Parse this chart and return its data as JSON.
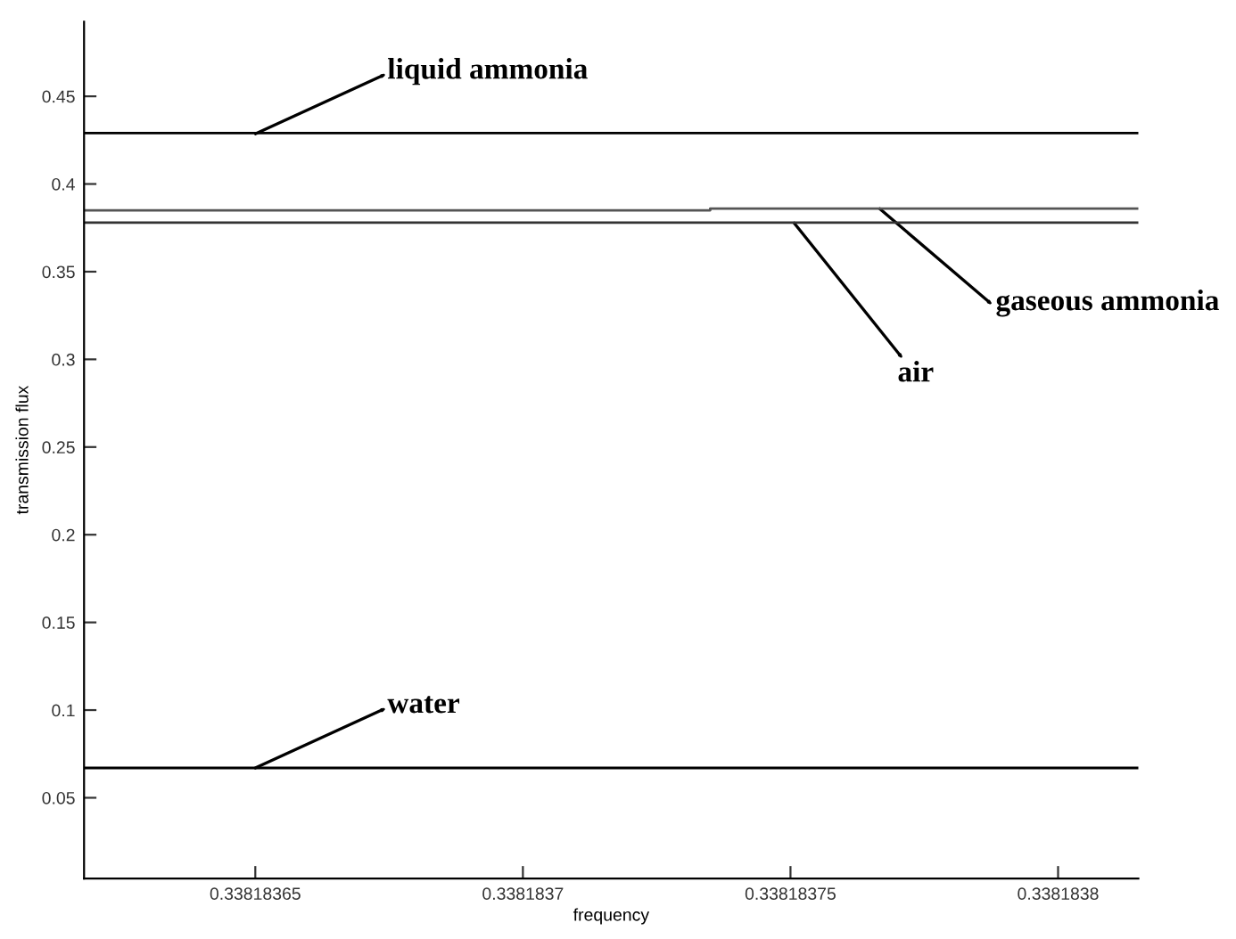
{
  "chart_data": {
    "type": "line",
    "xlabel": "frequency",
    "ylabel": "transmission flux",
    "xlim": [
      0.338183618,
      0.338183815
    ],
    "ylim": [
      0.004,
      0.4926
    ],
    "xticks": [
      0.33818365,
      0.3381837,
      0.33818375,
      0.3381838
    ],
    "yticks": [
      0.05,
      0.1,
      0.15,
      0.2,
      0.25,
      0.3,
      0.35,
      0.4,
      0.45
    ],
    "grid": false,
    "legend": false,
    "marker": "none",
    "line_style": "solid",
    "series": [
      {
        "color": "#000000",
        "x": [
          0.338183618,
          0.338183815
        ],
        "values": [
          0.429,
          0.429
        ]
      },
      {
        "color": "#555555",
        "x": [
          0.338183618,
          0.338183735,
          0.338183735,
          0.338183815
        ],
        "values": [
          0.385,
          0.385,
          0.386,
          0.386
        ]
      },
      {
        "color": "#333333",
        "x": [
          0.338183618,
          0.338183815
        ],
        "values": [
          0.378,
          0.378
        ]
      },
      {
        "color": "#000000",
        "x": [
          0.338183618,
          0.338183815
        ],
        "values": [
          0.067,
          0.067
        ]
      }
    ],
    "annotations": [
      "liquid ammonia",
      "air",
      "gaseous ammonia",
      "water"
    ]
  }
}
